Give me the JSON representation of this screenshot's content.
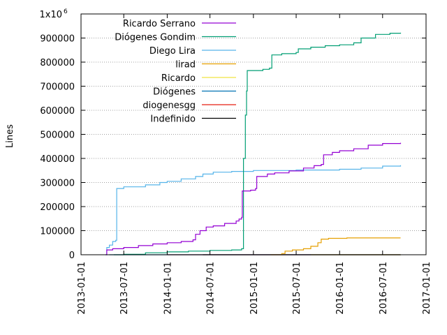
{
  "chart_data": {
    "type": "line",
    "title": "",
    "xlabel": "",
    "ylabel": "Lines",
    "x_is_date": true,
    "xlim": [
      "2013-01-01",
      "2017-01-01"
    ],
    "ylim": [
      0,
      1000000
    ],
    "y_top_label": "1x10",
    "y_top_label_sup": "6",
    "y_ticks": [
      {
        "value": 0,
        "label": "0"
      },
      {
        "value": 100000,
        "label": "100000"
      },
      {
        "value": 200000,
        "label": "200000"
      },
      {
        "value": 300000,
        "label": "300000"
      },
      {
        "value": 400000,
        "label": "400000"
      },
      {
        "value": 500000,
        "label": "500000"
      },
      {
        "value": 600000,
        "label": "600000"
      },
      {
        "value": 700000,
        "label": "700000"
      },
      {
        "value": 800000,
        "label": "800000"
      },
      {
        "value": 900000,
        "label": "900000"
      }
    ],
    "x_ticks": [
      {
        "value": "2013-01-01",
        "label": "2013-01-01"
      },
      {
        "value": "2013-07-01",
        "label": "2013-07-01"
      },
      {
        "value": "2014-01-01",
        "label": "2014-01-01"
      },
      {
        "value": "2014-07-01",
        "label": "2014-07-01"
      },
      {
        "value": "2015-01-01",
        "label": "2015-01-01"
      },
      {
        "value": "2015-07-01",
        "label": "2015-07-01"
      },
      {
        "value": "2016-01-01",
        "label": "2016-01-01"
      },
      {
        "value": "2016-07-01",
        "label": "2016-07-01"
      },
      {
        "value": "2017-01-01",
        "label": "2017-01-01"
      }
    ],
    "grid": true,
    "legend_position": "top-left",
    "series": [
      {
        "name": "Ricardo Serrano",
        "color": "#9400d3",
        "points": [
          [
            "2013-04-15",
            0
          ],
          [
            "2013-04-20",
            20000
          ],
          [
            "2013-05-15",
            25000
          ],
          [
            "2013-07-01",
            30000
          ],
          [
            "2013-09-01",
            38000
          ],
          [
            "2013-11-01",
            45000
          ],
          [
            "2014-01-01",
            50000
          ],
          [
            "2014-03-01",
            55000
          ],
          [
            "2014-04-20",
            62000
          ],
          [
            "2014-05-01",
            85000
          ],
          [
            "2014-05-20",
            100000
          ],
          [
            "2014-06-15",
            115000
          ],
          [
            "2014-07-15",
            120000
          ],
          [
            "2014-09-01",
            130000
          ],
          [
            "2014-10-20",
            140000
          ],
          [
            "2014-11-01",
            148000
          ],
          [
            "2014-11-12",
            155000
          ],
          [
            "2014-11-15",
            265000
          ],
          [
            "2014-12-20",
            268000
          ],
          [
            "2015-01-10",
            275000
          ],
          [
            "2015-01-15",
            325000
          ],
          [
            "2015-03-01",
            335000
          ],
          [
            "2015-04-01",
            340000
          ],
          [
            "2015-06-01",
            348000
          ],
          [
            "2015-08-01",
            360000
          ],
          [
            "2015-09-15",
            370000
          ],
          [
            "2015-10-15",
            375000
          ],
          [
            "2015-10-25",
            415000
          ],
          [
            "2015-12-01",
            425000
          ],
          [
            "2016-01-01",
            432000
          ],
          [
            "2016-03-01",
            440000
          ],
          [
            "2016-05-01",
            455000
          ],
          [
            "2016-07-01",
            462000
          ],
          [
            "2016-09-15",
            465000
          ]
        ]
      },
      {
        "name": "Diógenes Gondim",
        "color": "#009e73",
        "points": [
          [
            "2013-05-20",
            0
          ],
          [
            "2013-07-01",
            2000
          ],
          [
            "2013-10-01",
            8000
          ],
          [
            "2014-01-01",
            12000
          ],
          [
            "2014-04-01",
            15000
          ],
          [
            "2014-07-01",
            18000
          ],
          [
            "2014-10-01",
            20000
          ],
          [
            "2014-11-12",
            25000
          ],
          [
            "2014-11-20",
            400000
          ],
          [
            "2014-11-28",
            580000
          ],
          [
            "2014-12-03",
            680000
          ],
          [
            "2014-12-06",
            765000
          ],
          [
            "2015-02-10",
            770000
          ],
          [
            "2015-03-10",
            775000
          ],
          [
            "2015-03-20",
            830000
          ],
          [
            "2015-05-01",
            835000
          ],
          [
            "2015-07-01",
            840000
          ],
          [
            "2015-07-10",
            855000
          ],
          [
            "2015-09-01",
            862000
          ],
          [
            "2015-11-01",
            868000
          ],
          [
            "2016-01-01",
            872000
          ],
          [
            "2016-03-01",
            880000
          ],
          [
            "2016-04-01",
            900000
          ],
          [
            "2016-06-01",
            915000
          ],
          [
            "2016-08-01",
            920000
          ],
          [
            "2016-09-15",
            922000
          ]
        ]
      },
      {
        "name": "Diego Lira",
        "color": "#56b4e9",
        "points": [
          [
            "2013-04-15",
            0
          ],
          [
            "2013-04-20",
            30000
          ],
          [
            "2013-05-01",
            40000
          ],
          [
            "2013-05-15",
            55000
          ],
          [
            "2013-05-28",
            60000
          ],
          [
            "2013-06-01",
            275000
          ],
          [
            "2013-07-01",
            282000
          ],
          [
            "2013-10-01",
            290000
          ],
          [
            "2013-12-01",
            300000
          ],
          [
            "2014-01-01",
            305000
          ],
          [
            "2014-03-01",
            315000
          ],
          [
            "2014-05-01",
            325000
          ],
          [
            "2014-06-01",
            335000
          ],
          [
            "2014-07-15",
            343000
          ],
          [
            "2014-10-01",
            346000
          ],
          [
            "2015-01-01",
            350000
          ],
          [
            "2015-07-01",
            352000
          ],
          [
            "2016-01-01",
            355000
          ],
          [
            "2016-04-01",
            360000
          ],
          [
            "2016-07-01",
            368000
          ],
          [
            "2016-09-15",
            372000
          ]
        ]
      },
      {
        "name": "lirad",
        "color": "#e69f00",
        "points": [
          [
            "2015-03-15",
            0
          ],
          [
            "2015-05-01",
            5000
          ],
          [
            "2015-05-15",
            15000
          ],
          [
            "2015-06-15",
            20000
          ],
          [
            "2015-08-01",
            25000
          ],
          [
            "2015-09-01",
            35000
          ],
          [
            "2015-10-01",
            50000
          ],
          [
            "2015-10-15",
            65000
          ],
          [
            "2015-11-15",
            68000
          ],
          [
            "2016-02-01",
            70000
          ],
          [
            "2016-09-15",
            70000
          ]
        ]
      },
      {
        "name": "Ricardo",
        "color": "#f0e442",
        "points": [
          [
            "2015-09-01",
            0
          ],
          [
            "2016-09-15",
            1000
          ]
        ]
      },
      {
        "name": "Diógenes",
        "color": "#0072b2",
        "points": [
          [
            "2013-05-01",
            0
          ],
          [
            "2016-09-15",
            500
          ]
        ]
      },
      {
        "name": "diogenesgg",
        "color": "#e51e10",
        "points": [
          [
            "2014-01-01",
            0
          ],
          [
            "2016-09-15",
            0
          ]
        ]
      },
      {
        "name": "Indefinido",
        "color": "#000000",
        "points": [
          [
            "2014-06-01",
            0
          ],
          [
            "2016-09-15",
            0
          ]
        ]
      }
    ]
  }
}
